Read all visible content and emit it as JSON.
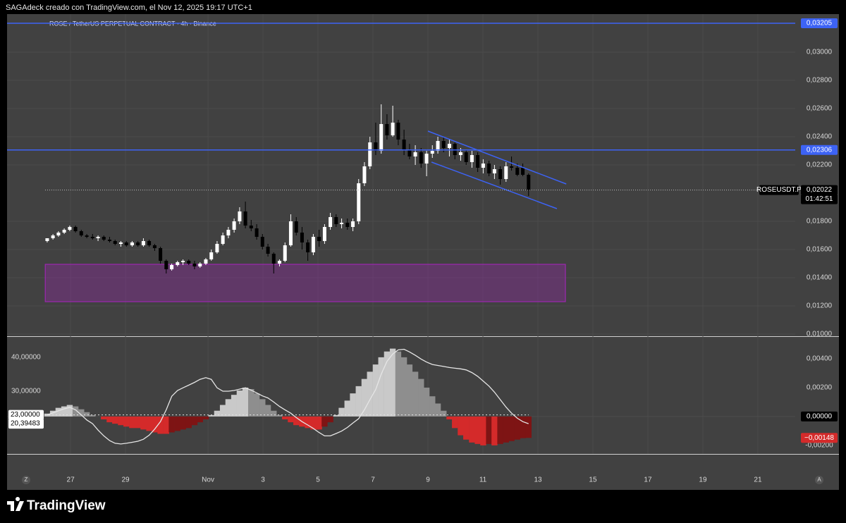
{
  "header": {
    "text": "SAGAdeck creado con TradingView.com, el Nov 12, 2025 19:17 UTC+1"
  },
  "footer": {
    "brand": "TradingView"
  },
  "ui": {
    "scale_buttons": [
      "Z",
      "A"
    ]
  },
  "chart_data": [
    {
      "type": "candlestick",
      "title": "ROSE / TetherUS PERPETUAL CONTRACT · 4h · Binance",
      "x": [
        0.15,
        0.36,
        0.56,
        0.77,
        0.97,
        1.18,
        1.39,
        1.59,
        1.8,
        2.0,
        2.21,
        2.42,
        2.62,
        2.83,
        3.03,
        3.24,
        3.45,
        3.65,
        3.86,
        4.06,
        4.27,
        4.48,
        4.68,
        4.89,
        5.09,
        5.3,
        5.51,
        5.71,
        5.92,
        6.12,
        6.33,
        6.54,
        6.74,
        6.95,
        7.15,
        7.36,
        7.57,
        7.77,
        7.98,
        8.18,
        8.39,
        8.6,
        8.8,
        9.01,
        9.21,
        9.42,
        9.63,
        9.83,
        10.04,
        10.24,
        10.45,
        10.66,
        10.86,
        11.07,
        11.27,
        11.48,
        11.69,
        11.89,
        12.1,
        12.3,
        12.51,
        12.72,
        12.92,
        13.13,
        13.33,
        13.54,
        13.75,
        13.95,
        14.16,
        14.36,
        14.57,
        14.78,
        14.98,
        15.19,
        15.39,
        15.6,
        15.81,
        16.01,
        16.22,
        16.42,
        16.63,
        16.84,
        17.04,
        17.25,
        17.45,
        17.66
      ],
      "open": [
        0.0166,
        0.0168,
        0.017,
        0.0172,
        0.0174,
        0.0176,
        0.0173,
        0.017,
        0.0169,
        0.0168,
        0.0169,
        0.0167,
        0.0166,
        0.0164,
        0.0165,
        0.0163,
        0.0165,
        0.0163,
        0.0166,
        0.0163,
        0.0161,
        0.0152,
        0.0146,
        0.0149,
        0.0151,
        0.0152,
        0.015,
        0.0148,
        0.015,
        0.0153,
        0.0158,
        0.0164,
        0.017,
        0.0174,
        0.018,
        0.0187,
        0.0177,
        0.0175,
        0.0169,
        0.0162,
        0.0157,
        0.015,
        0.0152,
        0.0163,
        0.018,
        0.0172,
        0.0165,
        0.0158,
        0.0169,
        0.0166,
        0.0176,
        0.0183,
        0.0178,
        0.0179,
        0.0176,
        0.018,
        0.0207,
        0.0219,
        0.0236,
        0.023,
        0.0249,
        0.0241,
        0.025,
        0.0238,
        0.0231,
        0.0226,
        0.0229,
        0.0221,
        0.0228,
        0.023,
        0.0237,
        0.0232,
        0.0235,
        0.0227,
        0.0229,
        0.0222,
        0.0227,
        0.0218,
        0.0221,
        0.0214,
        0.0217,
        0.021,
        0.0219,
        0.0218,
        0.0218,
        0.0213
      ],
      "high": [
        0.0168,
        0.0171,
        0.0173,
        0.0175,
        0.0177,
        0.0177,
        0.0174,
        0.0171,
        0.0171,
        0.017,
        0.017,
        0.0169,
        0.0167,
        0.0166,
        0.0166,
        0.0166,
        0.0166,
        0.0168,
        0.0167,
        0.0164,
        0.0162,
        0.0153,
        0.015,
        0.0152,
        0.0153,
        0.0153,
        0.0152,
        0.0151,
        0.0154,
        0.016,
        0.0166,
        0.0172,
        0.0176,
        0.0182,
        0.019,
        0.0194,
        0.0181,
        0.0178,
        0.0171,
        0.0164,
        0.0158,
        0.0153,
        0.0165,
        0.0185,
        0.0183,
        0.0176,
        0.0167,
        0.0171,
        0.0174,
        0.0178,
        0.0186,
        0.0185,
        0.0182,
        0.0182,
        0.0182,
        0.021,
        0.0222,
        0.024,
        0.025,
        0.0263,
        0.0256,
        0.0262,
        0.0252,
        0.0245,
        0.0235,
        0.0234,
        0.0232,
        0.023,
        0.0234,
        0.024,
        0.024,
        0.0238,
        0.0236,
        0.0232,
        0.0231,
        0.023,
        0.0229,
        0.0224,
        0.0223,
        0.022,
        0.0219,
        0.0222,
        0.0226,
        0.0221,
        0.0221,
        0.0214
      ],
      "low": [
        0.0165,
        0.0167,
        0.0169,
        0.0171,
        0.0173,
        0.0172,
        0.0169,
        0.0168,
        0.0167,
        0.0166,
        0.0166,
        0.0165,
        0.0163,
        0.0162,
        0.0162,
        0.0162,
        0.0162,
        0.0162,
        0.0162,
        0.0159,
        0.015,
        0.0143,
        0.0145,
        0.0148,
        0.0149,
        0.0149,
        0.0146,
        0.0147,
        0.0149,
        0.0152,
        0.0157,
        0.0163,
        0.0168,
        0.0172,
        0.0178,
        0.0175,
        0.0173,
        0.0167,
        0.016,
        0.0155,
        0.0143,
        0.0148,
        0.0151,
        0.0162,
        0.017,
        0.016,
        0.0152,
        0.0156,
        0.0162,
        0.0164,
        0.0174,
        0.0176,
        0.0175,
        0.0174,
        0.0173,
        0.0178,
        0.0205,
        0.0217,
        0.0227,
        0.0228,
        0.0238,
        0.024,
        0.0234,
        0.0227,
        0.0224,
        0.022,
        0.0218,
        0.0212,
        0.0225,
        0.0228,
        0.0229,
        0.0226,
        0.0224,
        0.0223,
        0.022,
        0.0218,
        0.0215,
        0.0214,
        0.0212,
        0.021,
        0.0206,
        0.0208,
        0.0216,
        0.0212,
        0.0212,
        0.0198
      ],
      "close": [
        0.0168,
        0.017,
        0.0172,
        0.0174,
        0.0176,
        0.0173,
        0.017,
        0.0169,
        0.0168,
        0.0169,
        0.0167,
        0.0166,
        0.0164,
        0.0165,
        0.0163,
        0.0165,
        0.0163,
        0.0166,
        0.0163,
        0.0161,
        0.0152,
        0.0146,
        0.0149,
        0.0151,
        0.0152,
        0.015,
        0.0148,
        0.015,
        0.0153,
        0.0158,
        0.0164,
        0.017,
        0.0174,
        0.018,
        0.0187,
        0.0177,
        0.0175,
        0.0169,
        0.0162,
        0.0157,
        0.015,
        0.0152,
        0.0163,
        0.018,
        0.0172,
        0.0165,
        0.0158,
        0.0169,
        0.0166,
        0.0176,
        0.0183,
        0.0178,
        0.0179,
        0.0176,
        0.018,
        0.0207,
        0.0219,
        0.0236,
        0.023,
        0.0249,
        0.0241,
        0.025,
        0.0238,
        0.0231,
        0.0226,
        0.0229,
        0.0221,
        0.0228,
        0.023,
        0.0237,
        0.0232,
        0.0235,
        0.0227,
        0.0229,
        0.0222,
        0.0227,
        0.0218,
        0.0221,
        0.0214,
        0.0217,
        0.021,
        0.0219,
        0.0218,
        0.0213,
        0.0213,
        0.0202
      ],
      "colors": {
        "up": "#ffffff",
        "down": "#000000"
      },
      "xlim": [
        -1.31,
        27.36
      ],
      "xticks": [
        {
          "value": 1,
          "label": "27"
        },
        {
          "value": 3,
          "label": "29"
        },
        {
          "value": 6,
          "label": "Nov"
        },
        {
          "value": 8,
          "label": "3"
        },
        {
          "value": 10,
          "label": "5"
        },
        {
          "value": 12,
          "label": "7"
        },
        {
          "value": 14,
          "label": "9"
        },
        {
          "value": 16,
          "label": "11"
        },
        {
          "value": 18,
          "label": "13"
        },
        {
          "value": 20,
          "label": "15"
        },
        {
          "value": 22,
          "label": "17"
        },
        {
          "value": 24,
          "label": "19"
        },
        {
          "value": 26,
          "label": "21"
        }
      ],
      "ylim": [
        0.00985,
        0.0327
      ],
      "yticks": [
        {
          "value": 0.03,
          "label": "0,03000"
        },
        {
          "value": 0.028,
          "label": "0,02800"
        },
        {
          "value": 0.026,
          "label": "0,02600"
        },
        {
          "value": 0.024,
          "label": "0,02400"
        },
        {
          "value": 0.022,
          "label": "0,02200"
        },
        {
          "value": 0.018,
          "label": "0,01800"
        },
        {
          "value": 0.016,
          "label": "0,01600"
        },
        {
          "value": 0.014,
          "label": "0,01400"
        },
        {
          "value": 0.012,
          "label": "0,01200"
        },
        {
          "value": 0.01,
          "label": "0,01000"
        }
      ],
      "grid": true,
      "hlines": [
        {
          "value": 0.03205,
          "label": "0,03205",
          "color": "#3d63f5"
        },
        {
          "value": 0.02306,
          "label": "0,02306",
          "color": "#3d63f5"
        }
      ],
      "trendlines": [
        {
          "x": [
            14,
            19.03
          ],
          "y": [
            0.0244,
            0.02065
          ],
          "color": "#3d63f5"
        },
        {
          "x": [
            14.13,
            18.69
          ],
          "y": [
            0.0222,
            0.0189
          ],
          "color": "#3d63f5"
        }
      ],
      "zone": {
        "x": [
          0.08,
          19.0
        ],
        "y": [
          0.0123,
          0.01495
        ],
        "color": "#9c27b0"
      },
      "last_price": {
        "value": 0.02022,
        "label": "0,02022",
        "symbol": "ROSEUSDT.P",
        "countdown": "01:42:51"
      }
    },
    {
      "type": "indicator",
      "ylim": [
        11.46,
        45.83
      ],
      "yticks": [
        {
          "value": 40,
          "label": "40,00000"
        },
        {
          "value": 30,
          "label": "30,00000"
        }
      ],
      "y2lim": [
        -0.00259,
        0.00546
      ],
      "y2ticks": [
        {
          "value": 0.004,
          "label": "0,00400"
        },
        {
          "value": 0.002,
          "label": "0,00200"
        },
        {
          "value": -0.002,
          "label": "-0,00200"
        }
      ],
      "series": [
        {
          "axis": "y2",
          "style": "histogram",
          "colors": {
            "pos_rising": "#c9c9c9",
            "pos_falling": "#8e8e8e",
            "neg_falling": "#d42a2a",
            "neg_rising": "#7e1414"
          },
          "values": [
            0.0002,
            0.0004,
            0.0006,
            0.0007,
            0.0008,
            0.0007,
            0.0005,
            0.0003,
            0.0001,
            0.0,
            -0.0002,
            -0.0004,
            -0.0005,
            -0.0006,
            -0.0007,
            -0.0008,
            -0.0008,
            -0.0009,
            -0.001,
            -0.0011,
            -0.0012,
            -0.0012,
            -0.0011,
            -0.001,
            -0.0009,
            -0.0008,
            -0.0006,
            -0.0004,
            -0.0002,
            0.0001,
            0.0004,
            0.0008,
            0.0012,
            0.0015,
            0.0018,
            0.002,
            0.0019,
            0.0016,
            0.0012,
            0.0008,
            0.0004,
            0.0001,
            -0.0002,
            -0.0004,
            -0.0006,
            -0.0007,
            -0.0008,
            -0.0009,
            -0.0009,
            -0.0007,
            -0.0004,
            0.0001,
            0.0006,
            0.0011,
            0.0016,
            0.0021,
            0.0026,
            0.0031,
            0.0036,
            0.0041,
            0.0045,
            0.0047,
            0.0045,
            0.0041,
            0.0036,
            0.0031,
            0.0026,
            0.002,
            0.0014,
            0.0009,
            0.0004,
            -0.0002,
            -0.0008,
            -0.0013,
            -0.0016,
            -0.0018,
            -0.0019,
            -0.002,
            -0.0019,
            -0.002,
            -0.0019,
            -0.0018,
            -0.0017,
            -0.0016,
            -0.0015,
            -0.00148
          ],
          "last_label": "−0,00148"
        },
        {
          "axis": "y",
          "style": "line",
          "color": "#e6e6e6",
          "values": [
            23.0,
            23.6,
            24.2,
            24.8,
            25.2,
            24.5,
            23.0,
            21.5,
            20.4,
            18.5,
            16.8,
            15.4,
            14.6,
            14.4,
            14.6,
            14.9,
            15.2,
            15.8,
            17.0,
            18.8,
            21.0,
            24.5,
            28.5,
            30.2,
            31.0,
            31.8,
            32.6,
            33.5,
            34.0,
            33.5,
            31.0,
            30.0,
            30.0,
            30.2,
            30.6,
            31.0,
            30.3,
            29.5,
            28.6,
            28.0,
            26.8,
            25.5,
            24.5,
            23.5,
            22.2,
            21.0,
            20.0,
            19.0,
            17.8,
            16.8,
            16.8,
            17.5,
            18.2,
            19.3,
            20.6,
            21.9,
            24.5,
            27.5,
            30.5,
            35.0,
            38.8,
            41.0,
            42.2,
            42.4,
            41.6,
            40.6,
            39.5,
            38.6,
            37.9,
            37.6,
            37.3,
            37.0,
            36.8,
            36.6,
            36.3,
            35.5,
            34.4,
            33.0,
            31.5,
            29.7,
            27.5,
            25.3,
            23.5,
            22.0,
            21.0,
            20.39483
          ],
          "last_label": "20,39483"
        }
      ],
      "hline": {
        "value": 23,
        "label": "23,00000"
      },
      "zero_line": {
        "value": 0,
        "label": "0,00000"
      }
    }
  ]
}
